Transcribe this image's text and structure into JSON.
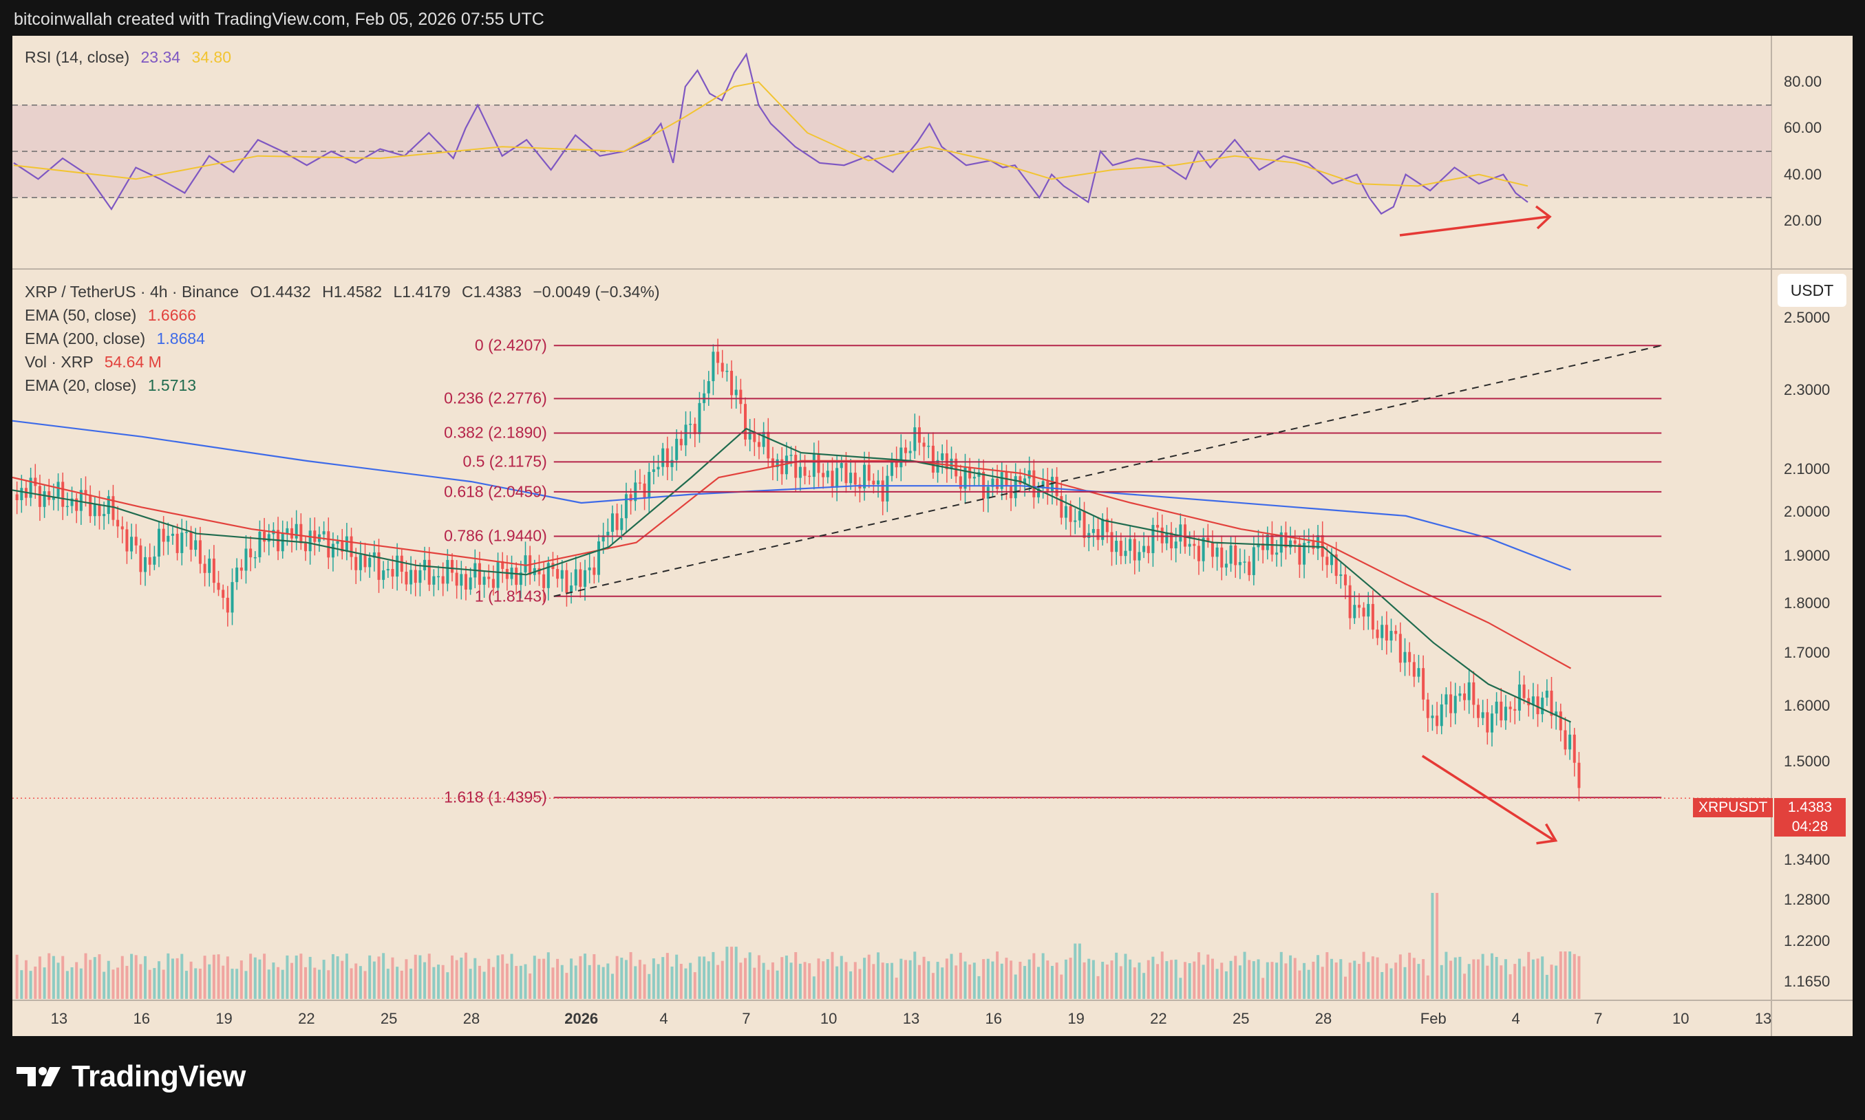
{
  "header": {
    "caption": "bitcoinwallah created with TradingView.com, Feb 05, 2026 07:55 UTC"
  },
  "footer": {
    "brand": "TradingView"
  },
  "rsi_legend": {
    "label": "RSI (14, close)",
    "rsi_value": "23.34",
    "ma_value": "34.80"
  },
  "main_legend": {
    "symbol_line": "XRP / TetherUS · 4h · Binance",
    "open": "O1.4432",
    "high": "H1.4582",
    "low": "L1.4179",
    "close": "C1.4383",
    "change": "−0.0049 (−0.34%)",
    "ema50_label": "EMA (50, close)",
    "ema50_value": "1.6666",
    "ema200_label": "EMA (200, close)",
    "ema200_value": "1.8684",
    "vol_label": "Vol · XRP",
    "vol_value": "54.64 M",
    "ema20_label": "EMA (20, close)",
    "ema20_value": "1.5713"
  },
  "unit_badge": "USDT",
  "price_tag": {
    "symbol": "XRPUSDT",
    "price": "1.4383",
    "countdown": "04:28"
  },
  "colors": {
    "background": "#f2e4d3",
    "rsi_band": "#e8d1cc",
    "rsi_line": "#7e57c2",
    "rsi_ma": "#f2c431",
    "ema50": "#e2413c",
    "ema200": "#3d6ae8",
    "ema20": "#1f6b4e",
    "fib": "#b5244a",
    "up": "#26a69a",
    "down": "#ef5350",
    "arrow": "#e53935"
  },
  "chart_data": [
    {
      "type": "line",
      "panel": "RSI (14, close)",
      "yticks": [
        "80.00",
        "60.00",
        "40.00",
        "20.00"
      ],
      "ylim": [
        0,
        100
      ],
      "levels": [
        70,
        50,
        30
      ],
      "x_index_range": [
        0,
        185
      ],
      "series": [
        {
          "name": "RSI",
          "points": [
            [
              0,
              45
            ],
            [
              4,
              38
            ],
            [
              8,
              47
            ],
            [
              12,
              40
            ],
            [
              16,
              25
            ],
            [
              20,
              43
            ],
            [
              24,
              38
            ],
            [
              28,
              32
            ],
            [
              32,
              48
            ],
            [
              36,
              41
            ],
            [
              40,
              55
            ],
            [
              44,
              50
            ],
            [
              48,
              44
            ],
            [
              52,
              50
            ],
            [
              56,
              45
            ],
            [
              60,
              51
            ],
            [
              64,
              48
            ],
            [
              68,
              58
            ],
            [
              72,
              47
            ],
            [
              74,
              60
            ],
            [
              76,
              70
            ],
            [
              80,
              48
            ],
            [
              84,
              55
            ],
            [
              88,
              42
            ],
            [
              92,
              57
            ],
            [
              96,
              48
            ],
            [
              100,
              50
            ],
            [
              104,
              55
            ],
            [
              106,
              62
            ],
            [
              108,
              45
            ],
            [
              110,
              78
            ],
            [
              112,
              85
            ],
            [
              114,
              75
            ],
            [
              116,
              72
            ],
            [
              118,
              84
            ],
            [
              120,
              92
            ],
            [
              122,
              70
            ],
            [
              124,
              62
            ],
            [
              128,
              52
            ],
            [
              132,
              45
            ],
            [
              136,
              44
            ],
            [
              140,
              48
            ],
            [
              144,
              41
            ],
            [
              148,
              54
            ],
            [
              150,
              62
            ],
            [
              152,
              52
            ],
            [
              156,
              44
            ],
            [
              160,
              46
            ],
            [
              162,
              43
            ],
            [
              164,
              44
            ],
            [
              168,
              30
            ],
            [
              170,
              40
            ],
            [
              172,
              35
            ],
            [
              176,
              28
            ],
            [
              178,
              50
            ],
            [
              180,
              44
            ],
            [
              184,
              47
            ],
            [
              188,
              45
            ],
            [
              192,
              38
            ],
            [
              194,
              50
            ],
            [
              196,
              43
            ],
            [
              200,
              55
            ],
            [
              204,
              42
            ],
            [
              208,
              48
            ],
            [
              212,
              45
            ],
            [
              216,
              36
            ],
            [
              220,
              40
            ],
            [
              222,
              30
            ],
            [
              224,
              23
            ],
            [
              226,
              26
            ],
            [
              228,
              40
            ],
            [
              232,
              33
            ],
            [
              236,
              43
            ],
            [
              240,
              36
            ],
            [
              244,
              40
            ],
            [
              246,
              32
            ],
            [
              248,
              28
            ]
          ]
        },
        {
          "name": "RSI-based MA",
          "points": [
            [
              0,
              44
            ],
            [
              20,
              38
            ],
            [
              40,
              48
            ],
            [
              60,
              47
            ],
            [
              80,
              52
            ],
            [
              100,
              50
            ],
            [
              110,
              65
            ],
            [
              118,
              78
            ],
            [
              122,
              80
            ],
            [
              130,
              58
            ],
            [
              140,
              46
            ],
            [
              150,
              52
            ],
            [
              160,
              46
            ],
            [
              170,
              38
            ],
            [
              180,
              42
            ],
            [
              190,
              44
            ],
            [
              200,
              48
            ],
            [
              210,
              45
            ],
            [
              220,
              36
            ],
            [
              230,
              35
            ],
            [
              240,
              40
            ],
            [
              248,
              35
            ]
          ]
        }
      ]
    },
    {
      "type": "candlestick",
      "panel": "XRP / TetherUS · 4h · Binance",
      "scale": "log",
      "yticks": [
        "2.5000",
        "2.3000",
        "2.1000",
        "2.0000",
        "1.9000",
        "1.8000",
        "1.7000",
        "1.6000",
        "1.5000",
        "1.4383",
        "1.3400",
        "1.2800",
        "1.2200",
        "1.1650"
      ],
      "ylim": [
        1.14,
        2.6
      ],
      "xticks": [
        {
          "label": "13",
          "day": 13
        },
        {
          "label": "16",
          "day": 16
        },
        {
          "label": "19",
          "day": 19
        },
        {
          "label": "22",
          "day": 22
        },
        {
          "label": "25",
          "day": 25
        },
        {
          "label": "28",
          "day": 28
        },
        {
          "label": "2026",
          "day": 32
        },
        {
          "label": "4",
          "day": 35
        },
        {
          "label": "7",
          "day": 38
        },
        {
          "label": "10",
          "day": 41
        },
        {
          "label": "13",
          "day": 44
        },
        {
          "label": "16",
          "day": 47
        },
        {
          "label": "19",
          "day": 50
        },
        {
          "label": "22",
          "day": 53
        },
        {
          "label": "25",
          "day": 56
        },
        {
          "label": "28",
          "day": 59
        },
        {
          "label": "Feb",
          "day": 63
        },
        {
          "label": "4",
          "day": 66
        },
        {
          "label": "7",
          "day": 69
        },
        {
          "label": "10",
          "day": 72
        },
        {
          "label": "13",
          "day": 75
        }
      ],
      "x_range_days": [
        11.3,
        75.3
      ],
      "price_path": [
        [
          11.3,
          2.04
        ],
        [
          12,
          2.05
        ],
        [
          13,
          2.03
        ],
        [
          14,
          2.02
        ],
        [
          15,
          1.99
        ],
        [
          16,
          1.88
        ],
        [
          17,
          1.95
        ],
        [
          18,
          1.92
        ],
        [
          19,
          1.8
        ],
        [
          20,
          1.92
        ],
        [
          21,
          1.95
        ],
        [
          22,
          1.94
        ],
        [
          23,
          1.93
        ],
        [
          24,
          1.89
        ],
        [
          25,
          1.87
        ],
        [
          26,
          1.86
        ],
        [
          27,
          1.86
        ],
        [
          28,
          1.85
        ],
        [
          29,
          1.86
        ],
        [
          30,
          1.87
        ],
        [
          31,
          1.86
        ],
        [
          32,
          1.84
        ],
        [
          33,
          1.96
        ],
        [
          34,
          2.05
        ],
        [
          35,
          2.12
        ],
        [
          36,
          2.2
        ],
        [
          37,
          2.4
        ],
        [
          38,
          2.2
        ],
        [
          39,
          2.12
        ],
        [
          40,
          2.1
        ],
        [
          41,
          2.09
        ],
        [
          42,
          2.08
        ],
        [
          43,
          2.06
        ],
        [
          44,
          2.18
        ],
        [
          45,
          2.12
        ],
        [
          46,
          2.08
        ],
        [
          47,
          2.06
        ],
        [
          48,
          2.07
        ],
        [
          49,
          2.06
        ],
        [
          50,
          1.97
        ],
        [
          51,
          1.95
        ],
        [
          52,
          1.9
        ],
        [
          53,
          1.95
        ],
        [
          54,
          1.93
        ],
        [
          55,
          1.91
        ],
        [
          56,
          1.88
        ],
        [
          57,
          1.93
        ],
        [
          58,
          1.92
        ],
        [
          59,
          1.92
        ],
        [
          60,
          1.8
        ],
        [
          61,
          1.75
        ],
        [
          62,
          1.7
        ],
        [
          63,
          1.57
        ],
        [
          64,
          1.63
        ],
        [
          65,
          1.57
        ],
        [
          66,
          1.61
        ],
        [
          67,
          1.61
        ],
        [
          67.5,
          1.58
        ],
        [
          68,
          1.52
        ],
        [
          68.4,
          1.4383
        ]
      ],
      "ema": [
        {
          "name": "EMA (50, close)",
          "last": 1.6666,
          "path": [
            [
              11.3,
              2.08
            ],
            [
              16,
              2.01
            ],
            [
              20,
              1.96
            ],
            [
              25,
              1.92
            ],
            [
              30,
              1.88
            ],
            [
              34,
              1.93
            ],
            [
              37,
              2.08
            ],
            [
              40,
              2.12
            ],
            [
              44,
              2.12
            ],
            [
              48,
              2.09
            ],
            [
              52,
              2.02
            ],
            [
              56,
              1.96
            ],
            [
              59,
              1.93
            ],
            [
              62,
              1.84
            ],
            [
              65,
              1.76
            ],
            [
              68,
              1.67
            ]
          ]
        },
        {
          "name": "EMA (200, close)",
          "last": 1.8684,
          "path": [
            [
              11.3,
              2.22
            ],
            [
              16,
              2.18
            ],
            [
              22,
              2.12
            ],
            [
              28,
              2.07
            ],
            [
              32,
              2.02
            ],
            [
              36,
              2.04
            ],
            [
              42,
              2.06
            ],
            [
              48,
              2.06
            ],
            [
              54,
              2.03
            ],
            [
              58,
              2.01
            ],
            [
              62,
              1.99
            ],
            [
              65,
              1.94
            ],
            [
              68,
              1.87
            ]
          ]
        },
        {
          "name": "EMA (20, close)",
          "last": 1.5713,
          "path": [
            [
              11.3,
              2.05
            ],
            [
              15,
              2.01
            ],
            [
              18,
              1.95
            ],
            [
              22,
              1.93
            ],
            [
              26,
              1.88
            ],
            [
              30,
              1.86
            ],
            [
              33,
              1.92
            ],
            [
              36,
              2.08
            ],
            [
              38,
              2.2
            ],
            [
              40,
              2.14
            ],
            [
              44,
              2.12
            ],
            [
              48,
              2.07
            ],
            [
              51,
              1.98
            ],
            [
              55,
              1.93
            ],
            [
              59,
              1.92
            ],
            [
              61,
              1.82
            ],
            [
              63,
              1.72
            ],
            [
              65,
              1.64
            ],
            [
              68,
              1.57
            ]
          ]
        }
      ],
      "fibonacci": [
        {
          "label": "0 (2.4207)",
          "value": 2.4207
        },
        {
          "label": "0.236 (2.2776)",
          "value": 2.2776
        },
        {
          "label": "0.382 (2.1890)",
          "value": 2.189
        },
        {
          "label": "0.5 (2.1175)",
          "value": 2.1175
        },
        {
          "label": "0.618 (2.0459)",
          "value": 2.0459
        },
        {
          "label": "0.786 (1.9440)",
          "value": 1.944
        },
        {
          "label": "1 (1.8143)",
          "value": 1.8143
        },
        {
          "label": "1.618 (1.4395)",
          "value": 1.4395
        }
      ],
      "fib_span_days": [
        31.0,
        71.3
      ],
      "trendline": {
        "from": [
          31.0,
          1.8143
        ],
        "to": [
          71.3,
          2.4207
        ]
      },
      "last_price": 1.4383,
      "volume_spikes": [
        [
          37.5,
          0.33
        ],
        [
          50,
          0.35
        ],
        [
          63,
          0.67
        ],
        [
          64.5,
          0.25
        ],
        [
          67.8,
          0.3
        ]
      ]
    }
  ]
}
